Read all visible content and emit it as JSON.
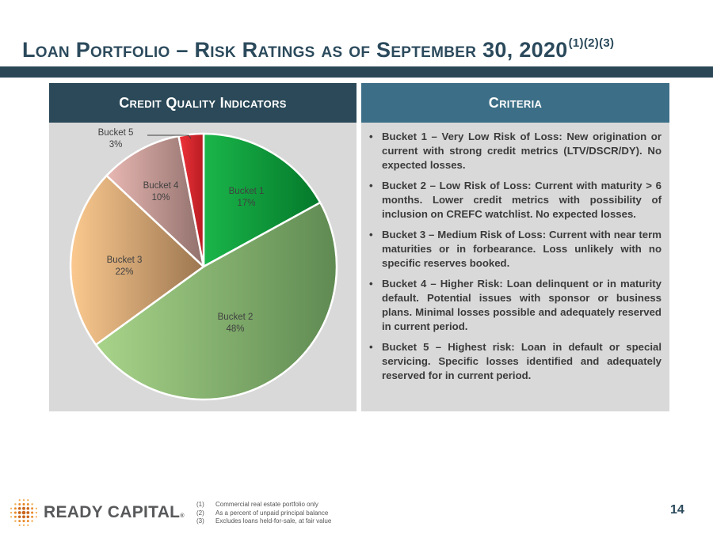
{
  "title": {
    "main": "Loan Portfolio – Risk Ratings as of September 30, 2020",
    "footnote_refs": "(1)(2)(3)"
  },
  "left_panel": {
    "header": "Credit Quality Indicators"
  },
  "right_panel": {
    "header": "Criteria",
    "bullets": [
      "Bucket 1 – Very Low Risk of Loss: New origination or current with strong credit metrics (LTV/DSCR/DY). No expected losses.",
      "Bucket 2 – Low Risk of Loss: Current with maturity > 6 months. Lower credit metrics with possibility of inclusion on CREFC watchlist. No expected losses.",
      "Bucket 3 – Medium Risk of Loss: Current with near term maturities or in forbearance. Loss unlikely with no specific reserves booked.",
      "Bucket 4 – Higher Risk: Loan delinquent or in maturity default. Potential issues with sponsor or business plans. Minimal losses possible and adequately reserved in current period.",
      "Bucket 5 – Highest risk: Loan in default or special servicing. Specific losses identified and adequately reserved for in current period."
    ]
  },
  "chart_data": {
    "type": "pie",
    "title": "Credit Quality Indicators",
    "categories": [
      "Bucket 1",
      "Bucket 2",
      "Bucket 3",
      "Bucket 4",
      "Bucket 5"
    ],
    "values": [
      17,
      48,
      22,
      10,
      3
    ],
    "labels": [
      "17%",
      "48%",
      "22%",
      "10%",
      "3%"
    ],
    "colors": [
      [
        "#1ab64a",
        "#04782a"
      ],
      [
        "#a8d48a",
        "#5f8a52"
      ],
      [
        "#fbc98f",
        "#9c7650"
      ],
      [
        "#e9b8b3",
        "#91706c"
      ],
      [
        "#f0323a",
        "#b71c22"
      ]
    ]
  },
  "footnotes": [
    {
      "num": "(1)",
      "text": "Commercial real estate portfolio only"
    },
    {
      "num": "(2)",
      "text": "As a percent of unpaid principal balance"
    },
    {
      "num": "(3)",
      "text": "Excludes loans held-for-sale, at fair value"
    }
  ],
  "logo": {
    "text": "READY CAPITAL",
    "mark": "®"
  },
  "page_number": "14"
}
